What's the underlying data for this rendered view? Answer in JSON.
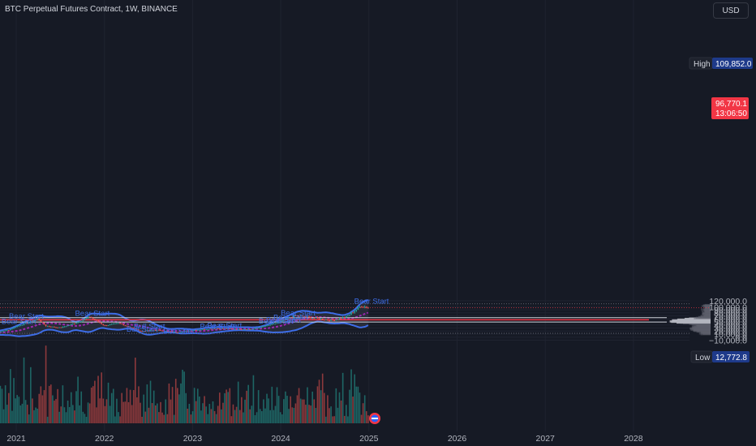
{
  "header": {
    "symbol_title": "BTC Perpetual Futures Contract, 1W, BINANCE",
    "currency_button": "USD"
  },
  "price_tags": {
    "high_label": "High",
    "high_value": "109,852.0",
    "last_price": "96,770.1",
    "countdown": "13:06:50",
    "low_label": "Low",
    "low_value": "12,772.8"
  },
  "colors": {
    "background": "#161a25",
    "up": "#26a69a",
    "down": "#ef5350",
    "band": "#3d6de8",
    "midline": "#9c27b0",
    "accent_red": "#f23645"
  },
  "chart_data": {
    "type": "candlestick",
    "title": "BTC Perpetual Futures Contract, 1W, BINANCE",
    "x_tick_labels": [
      "2021",
      "2022",
      "2023",
      "2024",
      "2025",
      "2026",
      "2027",
      "2028"
    ],
    "y_tick_labels": [
      "120,000.0",
      "100,000.0",
      "90,000.0",
      "80,000.0",
      "70,000.0",
      "60,000.0",
      "50,000.0",
      "40,000.0",
      "30,000.0",
      "20,000.0",
      "10,000.0",
      "0.0",
      "−10,000.0"
    ],
    "y_range": [
      -12000,
      124000
    ],
    "high": 109852.0,
    "low": 12772.8,
    "last": 96770.1,
    "horizontal_levels": [
      {
        "price": 64000,
        "color": "#d1d4dc"
      },
      {
        "price": 57200,
        "color": "#f23645"
      },
      {
        "price": 49800,
        "color": "#d1d4dc"
      }
    ],
    "price_path": [
      {
        "date": "2020-09",
        "price": 10800
      },
      {
        "date": "2020-12",
        "price": 24000
      },
      {
        "date": "2021-01",
        "price": 35000
      },
      {
        "date": "2021-04",
        "price": 60000
      },
      {
        "date": "2021-05",
        "price": 37000
      },
      {
        "date": "2021-07",
        "price": 31000
      },
      {
        "date": "2021-09",
        "price": 46000
      },
      {
        "date": "2021-11",
        "price": 67000
      },
      {
        "date": "2022-01",
        "price": 38000
      },
      {
        "date": "2022-03",
        "price": 46000
      },
      {
        "date": "2022-06",
        "price": 19500
      },
      {
        "date": "2022-08",
        "price": 24000
      },
      {
        "date": "2022-11",
        "price": 16000
      },
      {
        "date": "2023-01",
        "price": 23000
      },
      {
        "date": "2023-04",
        "price": 29000
      },
      {
        "date": "2023-09",
        "price": 26000
      },
      {
        "date": "2023-12",
        "price": 43000
      },
      {
        "date": "2024-03",
        "price": 71000
      },
      {
        "date": "2024-08",
        "price": 55000
      },
      {
        "date": "2024-10",
        "price": 68000
      },
      {
        "date": "2024-12",
        "price": 104000
      },
      {
        "date": "2025-01",
        "price": 96770
      }
    ],
    "annotations": [
      {
        "text": "Bear Start",
        "date": "2020-12",
        "price": 60500
      },
      {
        "text": "Bear Start",
        "date": "2020-11",
        "price": 43000
      },
      {
        "text": "Bear Start",
        "date": "2021-09",
        "price": 69500
      },
      {
        "text": "Bull Start",
        "date": "2022-05",
        "price": 27000
      },
      {
        "text": "Bull Start",
        "date": "2022-04",
        "price": 18500
      },
      {
        "text": "Bull Start",
        "date": "2022-09",
        "price": 11500
      },
      {
        "text": "Bear Start",
        "date": "2023-02",
        "price": 27400
      },
      {
        "text": "Bear Start",
        "date": "2023-03",
        "price": 30600
      },
      {
        "text": "Bear Start",
        "date": "2023-10",
        "price": 45300
      },
      {
        "text": "Bear Start",
        "date": "2023-11",
        "price": 49000
      },
      {
        "text": "Bear Start",
        "date": "2023-12",
        "price": 56200
      },
      {
        "text": "Bear Start",
        "date": "2024-01",
        "price": 71500
      },
      {
        "text": "Bear Start",
        "date": "2024-11",
        "price": 110000
      }
    ]
  }
}
